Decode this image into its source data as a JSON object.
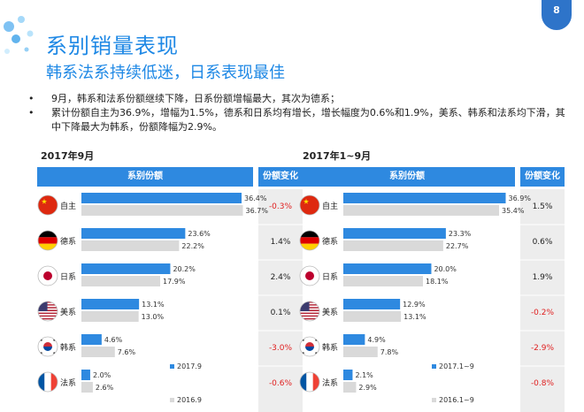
{
  "page_number": "8",
  "header": {
    "title": "系别销量表现",
    "subtitle": "韩系法系持续低迷，日系表现最佳"
  },
  "bullets": [
    "9月，韩系和法系份额继续下降，日系份额增幅最大，其次为德系；",
    "累计份额自主为36.9%，增幅为1.5%，德系和日系均有增长，增长幅度为0.6%和1.9%，美系、韩系和法系均下滑，其中下降最大为韩系，份额降幅为2.9%。"
  ],
  "colors": {
    "current": "#2e89e0",
    "previous": "#d9d9d9",
    "header": "#2e89e0",
    "negative": "#e02020",
    "title": "#1e88e5"
  },
  "chart_data": [
    {
      "type": "bar",
      "orientation": "horizontal",
      "title": "2017年9月",
      "column_headers": [
        "系别份额",
        "份额变化"
      ],
      "categories": [
        "自主",
        "德系",
        "日系",
        "美系",
        "韩系",
        "法系"
      ],
      "flags": [
        "china-flag-icon",
        "germany-flag-icon",
        "japan-flag-icon",
        "usa-flag-icon",
        "korea-flag-icon",
        "france-flag-icon"
      ],
      "series": [
        {
          "name": "2017.9",
          "values": [
            36.4,
            23.6,
            20.2,
            13.1,
            4.6,
            2.0
          ],
          "labels": [
            "36.4%",
            "23.6%",
            "20.2%",
            "13.1%",
            "4.6%",
            "2.0%"
          ]
        },
        {
          "name": "2016.9",
          "values": [
            36.7,
            22.2,
            17.9,
            13.0,
            7.6,
            2.6
          ],
          "labels": [
            "36.7%",
            "22.2%",
            "17.9%",
            "13.0%",
            "7.6%",
            "2.6%"
          ]
        }
      ],
      "changes": [
        "-0.3%",
        "1.4%",
        "2.4%",
        "0.1%",
        "-3.0%",
        "-0.6%"
      ],
      "change_values": [
        -0.3,
        1.4,
        2.4,
        0.1,
        -3.0,
        -0.6
      ],
      "xlim": [
        0,
        40
      ],
      "legend": "bottom-right"
    },
    {
      "type": "bar",
      "orientation": "horizontal",
      "title": "2017年1~9月",
      "column_headers": [
        "系别份额",
        "份额变化"
      ],
      "categories": [
        "自主",
        "德系",
        "日系",
        "美系",
        "韩系",
        "法系"
      ],
      "flags": [
        "china-flag-icon",
        "germany-flag-icon",
        "japan-flag-icon",
        "usa-flag-icon",
        "korea-flag-icon",
        "france-flag-icon"
      ],
      "series": [
        {
          "name": "2017.1~9",
          "values": [
            36.9,
            23.3,
            20.0,
            12.9,
            4.9,
            2.1
          ],
          "labels": [
            "36.9%",
            "23.3%",
            "20.0%",
            "12.9%",
            "4.9%",
            "2.1%"
          ]
        },
        {
          "name": "2016.1~9",
          "values": [
            35.4,
            22.7,
            18.1,
            13.1,
            7.8,
            2.9
          ],
          "labels": [
            "35.4%",
            "22.7%",
            "18.1%",
            "13.1%",
            "7.8%",
            "2.9%"
          ]
        }
      ],
      "changes": [
        "1.5%",
        "0.6%",
        "1.9%",
        "-0.2%",
        "-2.9%",
        "-0.8%"
      ],
      "change_values": [
        1.5,
        0.6,
        1.9,
        -0.2,
        -2.9,
        -0.8
      ],
      "xlim": [
        0,
        40
      ],
      "legend": "bottom-right"
    }
  ]
}
